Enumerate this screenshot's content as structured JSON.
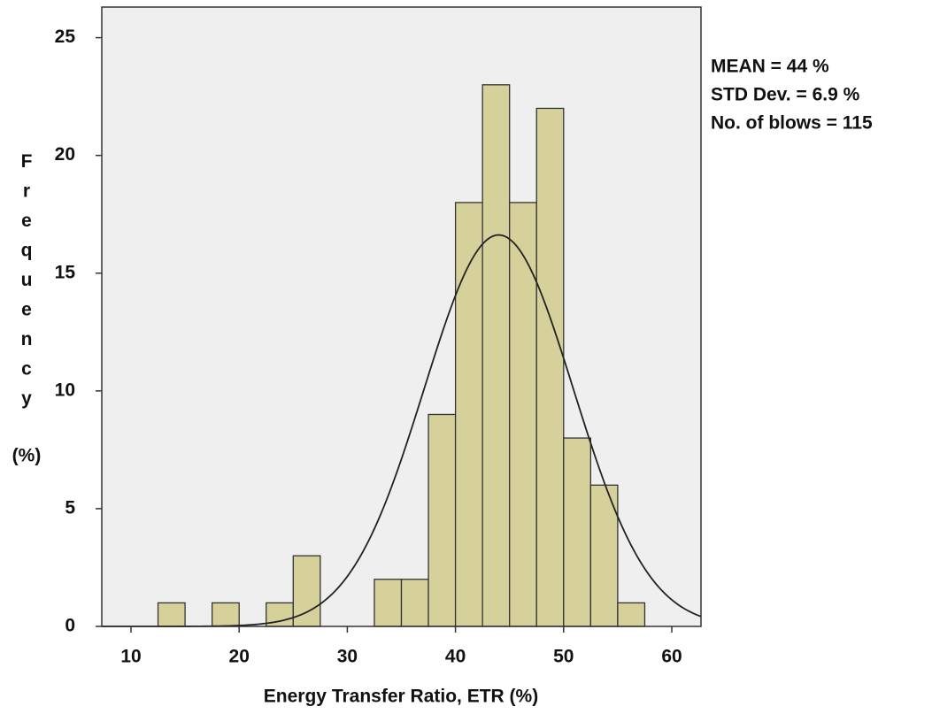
{
  "chart_data": {
    "type": "histogram",
    "xlabel": "Energy Transfer Ratio, ETR  (%)",
    "ylabel": "Frequency",
    "ylabel_unit": "(%)",
    "annotations": [
      "MEAN = 44 %",
      "STD Dev. = 6.9 %",
      "No. of blows = 115"
    ],
    "bins": [
      12.5,
      15,
      17.5,
      20,
      22.5,
      25,
      27.5,
      30,
      32.5,
      35,
      37.5,
      40,
      42.5,
      45,
      47.5,
      50,
      52.5,
      55,
      57.5
    ],
    "values": [
      1,
      0,
      1,
      0,
      1,
      3,
      0,
      0,
      2,
      2,
      9,
      18,
      23,
      18,
      22,
      8,
      6,
      1
    ],
    "color": "#d6d09b",
    "normal_curve": {
      "mean": 44,
      "std": 6.9
    },
    "xlim": [
      7.3,
      62.7
    ],
    "ylim": [
      0,
      26.3
    ],
    "xticks": [
      10,
      20,
      30,
      40,
      50,
      60
    ],
    "yticks": [
      0,
      5,
      10,
      15,
      20,
      25
    ],
    "plot_background": "#efefef"
  }
}
